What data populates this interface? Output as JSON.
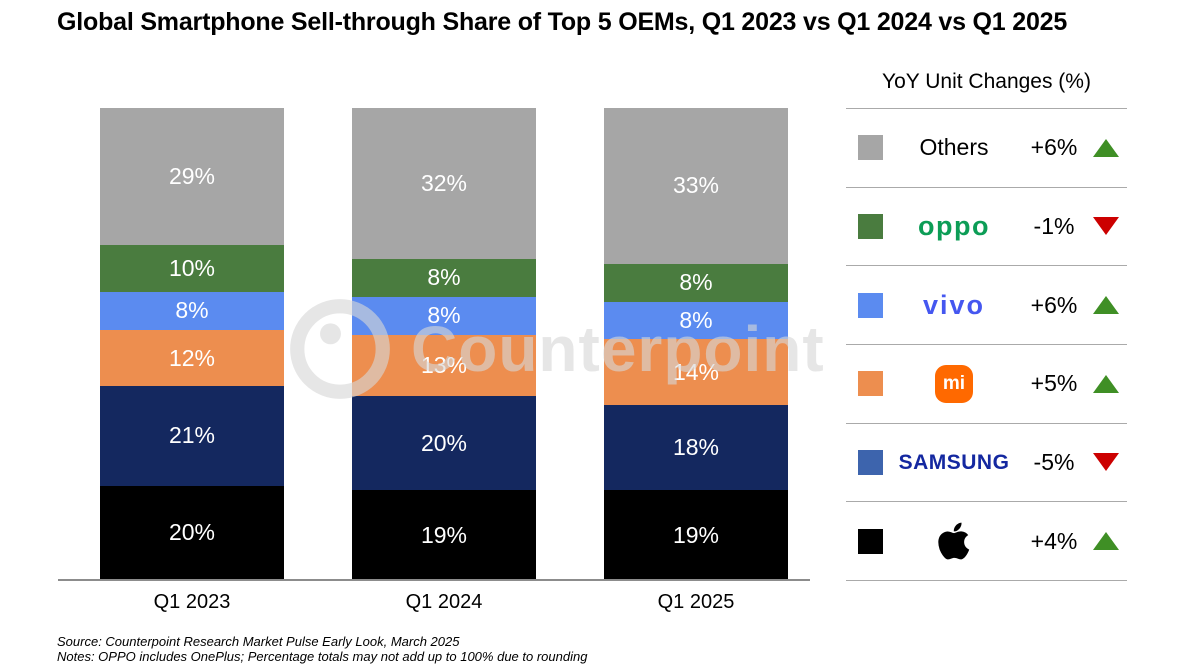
{
  "title": "Global Smartphone Sell-through Share of Top 5 OEMs, Q1 2023 vs Q1 2024 vs Q1 2025",
  "watermark": "Counterpoint",
  "footer": {
    "source": "Source: Counterpoint Research Market Pulse Early Look, March 2025",
    "notes": "Notes: OPPO includes OnePlus; Percentage totals may not add up to 100% due to rounding"
  },
  "legend": {
    "header": "YoY Unit Changes (%)",
    "up_color": "#3f8f25",
    "down_color": "#cc0000",
    "rows": [
      {
        "name": "Others",
        "display": "Others",
        "change": "+6%",
        "direction": "up",
        "swatch": "#a6a6a6",
        "logo_color": "#000000"
      },
      {
        "name": "OPPO",
        "display": "oppo",
        "change": "-1%",
        "direction": "down",
        "swatch": "#4a7c3f",
        "logo_color": "#0c9d56"
      },
      {
        "name": "vivo",
        "display": "vivo",
        "change": "+6%",
        "direction": "up",
        "swatch": "#5b8bf0",
        "logo_color": "#4557f0"
      },
      {
        "name": "Xiaomi",
        "display": "mi",
        "change": "+5%",
        "direction": "up",
        "swatch": "#ed8e4f",
        "logo_color": "#ff6900"
      },
      {
        "name": "Samsung",
        "display": "SAMSUNG",
        "change": "-5%",
        "direction": "down",
        "swatch": "#3d64ad",
        "logo_color": "#1428a0"
      },
      {
        "name": "Apple",
        "display": "",
        "change": "+4%",
        "direction": "up",
        "swatch": "#000000",
        "logo_color": "#000000"
      }
    ]
  },
  "chart_data": {
    "type": "bar",
    "stacked": true,
    "title": "Global Smartphone Sell-through Share of Top 5 OEMs, Q1 2023 vs Q1 2024 vs Q1 2025",
    "categories": [
      "Q1 2023",
      "Q1 2024",
      "Q1 2025"
    ],
    "series": [
      {
        "name": "Others",
        "color": "#a6a6a6",
        "values": [
          29,
          32,
          33
        ]
      },
      {
        "name": "OPPO",
        "color": "#4a7c3f",
        "values": [
          10,
          8,
          8
        ]
      },
      {
        "name": "vivo",
        "color": "#5b8bf0",
        "values": [
          8,
          8,
          8
        ]
      },
      {
        "name": "Xiaomi",
        "color": "#ed8e4f",
        "values": [
          12,
          13,
          14
        ]
      },
      {
        "name": "Samsung",
        "color": "#14285f",
        "values": [
          21,
          20,
          18
        ]
      },
      {
        "name": "Apple",
        "color": "#000000",
        "values": [
          20,
          19,
          19
        ]
      }
    ],
    "value_suffix": "%",
    "ylim": [
      0,
      100
    ],
    "grid": false,
    "legend_position": "right",
    "segment_order_top_to_bottom": [
      "Others",
      "OPPO",
      "vivo",
      "Xiaomi",
      "Samsung",
      "Apple"
    ]
  }
}
